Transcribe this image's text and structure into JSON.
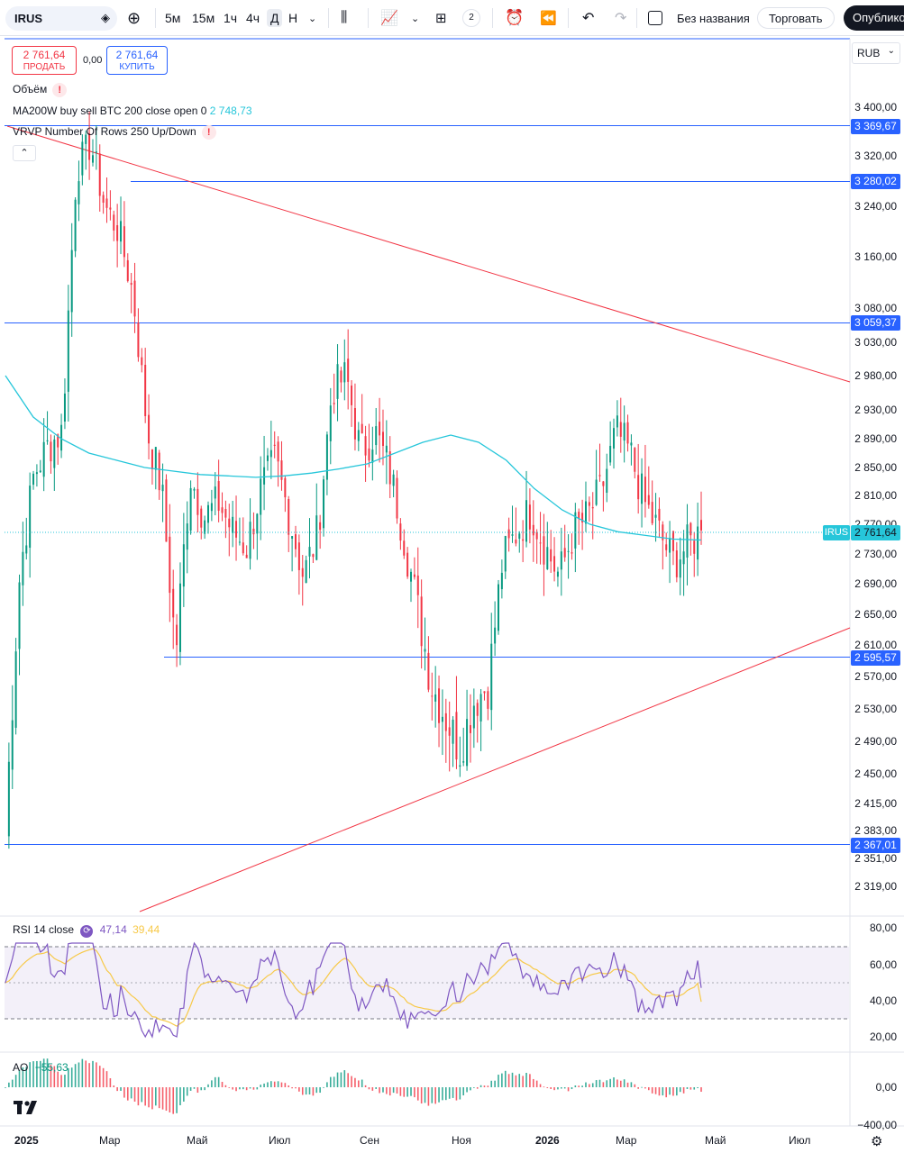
{
  "toolbar": {
    "symbol": "IRUS",
    "intervals": [
      "5м",
      "15м",
      "1ч",
      "4ч",
      "Д",
      "Н"
    ],
    "layouts_count": "2",
    "chart_name": "Без названия",
    "trade_label": "Торговать",
    "publish_label": "Опубликовать"
  },
  "order": {
    "sell_price": "2 761,64",
    "sell_label": "ПРОДАТЬ",
    "spread": "0,00",
    "buy_price": "2 761,64",
    "buy_label": "КУПИТЬ"
  },
  "legend": {
    "volume": "Объём",
    "ma": "MA200W buy sell BTC 200 close open 0",
    "ma_value": "2 748,73",
    "vrvp": "VRVP Number Of Rows 250 Up/Down",
    "rsi": "RSI 14 close",
    "rsi_value": "47,14",
    "rsi_ma_value": "39,44",
    "ao": "AO",
    "ao_value": "−55,63"
  },
  "currency": "RUB",
  "price_axis": [
    "3 400,00",
    "3 320,00",
    "3 240,00",
    "3 160,00",
    "3 080,00",
    "3 030,00",
    "2 980,00",
    "2 930,00",
    "2 890,00",
    "2 850,00",
    "2 810,00",
    "2 770,00",
    "2 730,00",
    "2 690,00",
    "2 650,00",
    "2 610,00",
    "2 570,00",
    "2 530,00",
    "2 490,00",
    "2 450,00",
    "2 415,00",
    "2 383,00",
    "2 351,00",
    "2 319,00"
  ],
  "hlines": [
    "3 369,67",
    "3 280,02",
    "3 059,37",
    "2 595,57",
    "2 367,01"
  ],
  "current_price": "2 761,64",
  "rsi_axis": [
    "80,00",
    "60,00",
    "40,00",
    "20,00"
  ],
  "ao_axis": [
    "0,00",
    "−400,00"
  ],
  "time_axis": [
    "2025",
    "Мар",
    "Май",
    "Июл",
    "Сен",
    "Ноя",
    "2026",
    "Мар",
    "Май",
    "Июл"
  ],
  "colors": {
    "up": "#089981",
    "down": "#f23645",
    "ma": "#26c6da",
    "hline": "#2962ff",
    "trend": "#f23645",
    "rsi": "#7e57c2",
    "rsi_ma": "#f7c948"
  },
  "chart_data": {
    "type": "candlestick",
    "symbol": "IRUS",
    "x": [
      "2025",
      "Мар",
      "Май",
      "Июл",
      "Сен",
      "Ноя",
      "2026",
      "Мар",
      "Май",
      "Июл"
    ],
    "close_path": [
      2383,
      2700,
      2840,
      2880,
      2900,
      3300,
      3340,
      3240,
      3200,
      3100,
      2900,
      2820,
      2600,
      2840,
      2780,
      2800,
      2760,
      2740,
      2820,
      2860,
      2780,
      2700,
      2760,
      2960,
      2980,
      2870,
      2900,
      2850,
      2760,
      2660,
      2560,
      2520,
      2480,
      2540,
      2560,
      2720,
      2760,
      2790,
      2740,
      2700,
      2760,
      2780,
      2820,
      2900,
      2870,
      2800,
      2760,
      2720,
      2740,
      2761.64
    ],
    "ma_path": [
      2980,
      2920,
      2890,
      2870,
      2860,
      2850,
      2845,
      2840,
      2838,
      2836,
      2838,
      2842,
      2848,
      2855,
      2870,
      2885,
      2895,
      2885,
      2860,
      2820,
      2790,
      2770,
      2760,
      2755,
      2750,
      2748.73
    ],
    "rsi_last": 47.14,
    "rsi_ma_last": 39.44,
    "ao_last": -55.63
  }
}
